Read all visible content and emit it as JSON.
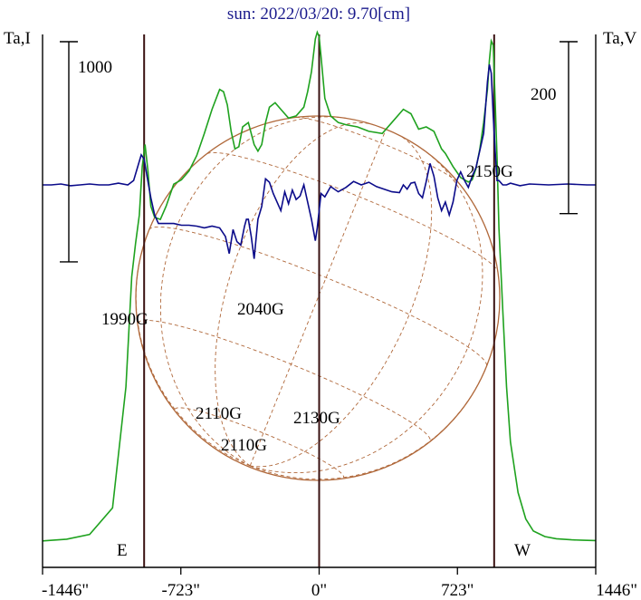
{
  "title": "sun: 2022/03/20: 9.70[cm]",
  "colors": {
    "intensity": "#1fa21f",
    "polarization": "#0b0b8a",
    "sun_disk": "#b0683a",
    "limb_lines": "#3a1212",
    "axis": "#000000"
  },
  "chart_data": {
    "type": "line",
    "title": "sun: 2022/03/20: 9.70[cm]",
    "xlabel": "",
    "ylabel_left": "Ta,I",
    "ylabel_right": "Ta,V",
    "xlim": [
      -1446,
      1446
    ],
    "x_ticks": [
      -1446,
      -723,
      0,
      723,
      1446
    ],
    "x_tick_labels": [
      "-1446\"",
      "-723\"",
      "0\"",
      "723\"",
      "1446\""
    ],
    "limbs": [
      {
        "label": "E",
        "x": -915
      },
      {
        "label": "W",
        "x": 915
      }
    ],
    "center_x": 0,
    "scale_bars": [
      {
        "axis": "left",
        "value": 1000,
        "label": "1000"
      },
      {
        "axis": "right",
        "value": 200,
        "label": "200"
      }
    ],
    "series": [
      {
        "key": "I",
        "axis": "left",
        "color": "#1fa21f",
        "ylim": [
          -120,
          2300
        ],
        "x": [
          -1446,
          -1320,
          -1200,
          -1080,
          -1010,
          -980,
          -960,
          -940,
          -925,
          -910,
          -895,
          -880,
          -860,
          -830,
          -800,
          -760,
          -720,
          -680,
          -640,
          -600,
          -560,
          -520,
          -500,
          -480,
          -460,
          -440,
          -420,
          -400,
          -370,
          -340,
          -320,
          -300,
          -280,
          -260,
          -230,
          -200,
          -160,
          -120,
          -80,
          -60,
          -40,
          -20,
          -10,
          0,
          10,
          30,
          60,
          100,
          140,
          200,
          260,
          330,
          380,
          440,
          480,
          520,
          560,
          600,
          640,
          660,
          700,
          740,
          780,
          800,
          820,
          840,
          860,
          880,
          890,
          900,
          910,
          920,
          930,
          940,
          960,
          980,
          1000,
          1040,
          1080,
          1120,
          1180,
          1240,
          1320,
          1380,
          1446
        ],
        "values": [
          0,
          8,
          30,
          150,
          700,
          1200,
          1350,
          1480,
          1700,
          1800,
          1680,
          1520,
          1470,
          1460,
          1520,
          1620,
          1640,
          1680,
          1750,
          1850,
          1960,
          2050,
          2040,
          1980,
          1860,
          1780,
          1790,
          1880,
          1900,
          1800,
          1770,
          1800,
          1900,
          1970,
          1990,
          1960,
          1920,
          1930,
          1970,
          2040,
          2130,
          2280,
          2310,
          2290,
          2200,
          2010,
          1930,
          1900,
          1890,
          1880,
          1860,
          1850,
          1900,
          1960,
          1940,
          1870,
          1880,
          1860,
          1780,
          1760,
          1700,
          1650,
          1630,
          1640,
          1690,
          1780,
          1900,
          2050,
          2180,
          2270,
          2250,
          2000,
          1740,
          1420,
          1050,
          700,
          450,
          220,
          100,
          45,
          20,
          10,
          5,
          3,
          2
        ]
      },
      {
        "key": "V",
        "axis": "right",
        "color": "#0b0b8a",
        "ylim": [
          -445,
          175
        ],
        "x": [
          -1446,
          -1400,
          -1350,
          -1300,
          -1250,
          -1200,
          -1150,
          -1100,
          -1050,
          -1000,
          -970,
          -950,
          -930,
          -915,
          -900,
          -880,
          -860,
          -840,
          -820,
          -800,
          -760,
          -720,
          -680,
          -640,
          -600,
          -560,
          -520,
          -490,
          -470,
          -450,
          -430,
          -410,
          -390,
          -380,
          -370,
          -355,
          -340,
          -320,
          -300,
          -280,
          -260,
          -240,
          -220,
          -200,
          -180,
          -160,
          -140,
          -120,
          -100,
          -80,
          -60,
          -40,
          -20,
          -10,
          0,
          10,
          30,
          60,
          100,
          140,
          180,
          220,
          260,
          300,
          340,
          380,
          420,
          440,
          460,
          480,
          500,
          520,
          540,
          560,
          580,
          600,
          620,
          640,
          660,
          680,
          700,
          720,
          740,
          760,
          780,
          800,
          820,
          840,
          860,
          880,
          890,
          900,
          910,
          920,
          930,
          940,
          960,
          980,
          1000,
          1050,
          1100,
          1200,
          1300,
          1400,
          1446
        ],
        "values": [
          0,
          0,
          1,
          -1,
          0,
          1,
          0,
          0,
          2,
          0,
          5,
          20,
          35,
          30,
          10,
          -15,
          -35,
          -45,
          -45,
          -45,
          -45,
          -47,
          -47,
          -48,
          -50,
          -48,
          -50,
          -60,
          -80,
          -52,
          -66,
          -70,
          -48,
          -40,
          -40,
          -60,
          -86,
          -40,
          -25,
          7,
          3,
          -10,
          -20,
          -30,
          -8,
          -22,
          -6,
          -17,
          -13,
          0,
          -20,
          -40,
          -65,
          -50,
          -30,
          -10,
          -14,
          -2,
          -8,
          -3,
          4,
          0,
          3,
          -2,
          -5,
          -8,
          -9,
          0,
          -5,
          2,
          3,
          -10,
          -15,
          4,
          25,
          10,
          -15,
          -30,
          -20,
          -35,
          -20,
          5,
          15,
          5,
          -3,
          10,
          20,
          40,
          60,
          120,
          140,
          130,
          80,
          40,
          5,
          5,
          0,
          0,
          2,
          -1,
          1,
          0,
          1,
          0,
          0
        ]
      }
    ],
    "annotations": [
      "1990G",
      "2040G",
      "2110G",
      "2110G",
      "2130G",
      "2150G"
    ],
    "labels": {
      "east": "E",
      "west": "W"
    }
  }
}
